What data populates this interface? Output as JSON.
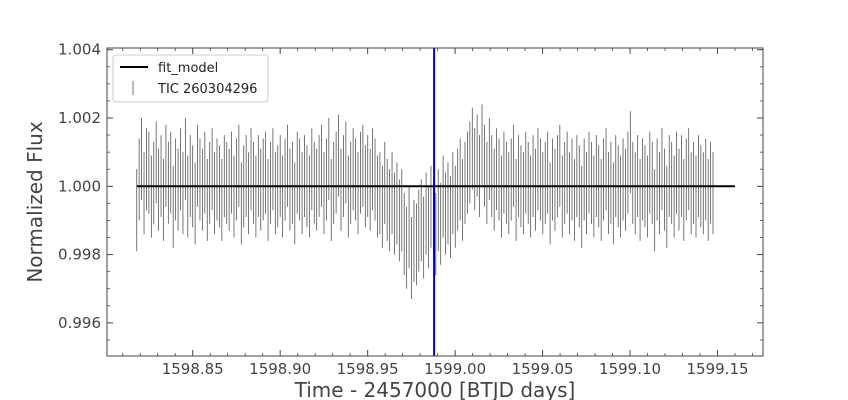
{
  "chart_data": {
    "type": "scatter",
    "xlabel": "Time - 2457000 [BTJD days]",
    "ylabel": "Normalized Flux",
    "xlim": [
      1598.801,
      1599.176
    ],
    "ylim": [
      0.99503,
      1.00405
    ],
    "xticks": [
      1598.85,
      1598.9,
      1598.95,
      1599.0,
      1599.05,
      1599.1,
      1599.15
    ],
    "xtick_labels": [
      "1598.85",
      "1598.90",
      "1598.95",
      "1599.00",
      "1599.05",
      "1599.10",
      "1599.15"
    ],
    "yticks": [
      0.996,
      0.998,
      1.0,
      1.002,
      1.004
    ],
    "ytick_labels": [
      "0.996",
      "0.998",
      "1.000",
      "1.002",
      "1.004"
    ],
    "grid": false,
    "legend_position": "top-left",
    "series": [
      {
        "name": "fit_model",
        "kind": "line",
        "color": "#000000",
        "x": [
          1598.818,
          1599.16
        ],
        "y": [
          1.0,
          1.0
        ]
      },
      {
        "name": "TIC 260304296",
        "kind": "errorbar",
        "color": "#555555",
        "x_start": 1598.818,
        "x_step": 0.00139,
        "error": 0.0012,
        "y": [
          0.9993,
          1.0002,
          1.0008,
          0.9998,
          1.0005,
          1.0004,
          0.9997,
          1.0001,
          1.0007,
          0.9999,
          1.0003,
          0.9996,
          1.0006,
          1.0001,
          1.0004,
          0.9994,
          1.0002,
          0.9999,
          1.0005,
          0.9998,
          1.0008,
          0.9997,
          1.0003,
          1.0,
          0.9995,
          1.0006,
          1.0002,
          0.9999,
          1.0004,
          0.9996,
          1.0001,
          1.0005,
          0.9998,
          1.0002,
          1.0,
          0.9996,
          1.0003,
          1.0001,
          0.9999,
          1.0004,
          0.9997,
          1.0002,
          1.0006,
          0.9995,
          1.0,
          1.0003,
          0.9998,
          1.0005,
          1.0001,
          0.9997,
          1.0003,
          0.9999,
          1.0002,
          1.0004,
          0.9996,
          1.0001,
          1.0005,
          0.9998,
          1.0,
          1.0003,
          0.9997,
          1.0002,
          1.0006,
          0.9999,
          1.0001,
          0.9995,
          1.0004,
          1.0002,
          0.9998,
          1.0003,
          1.0,
          0.9997,
          1.0005,
          1.0001,
          0.9999,
          1.0003,
          1.0006,
          0.9998,
          1.0002,
          1.0008,
          0.9996,
          1.0001,
          1.0004,
          1.0009,
          0.9999,
          1.0003,
          1.0007,
          0.9997,
          1.0001,
          1.0005,
          1.0002,
          0.9998,
          1.0004,
          1.0006,
          1.0,
          1.0003,
          0.9999,
          1.0005,
          1.0002,
          0.9997,
          0.9998,
          0.9994,
          1.0001,
          0.9996,
          0.9993,
          0.9998,
          0.9992,
          0.9995,
          0.999,
          0.9993,
          0.9986,
          0.9982,
          0.9988,
          0.9979,
          0.9984,
          0.9983,
          0.9987,
          0.999,
          0.9985,
          0.9992,
          0.9988,
          0.9994,
          0.999,
          0.9986,
          0.9993,
          0.9989,
          0.9997,
          0.9992,
          0.9995,
          0.9991,
          0.9998,
          0.9994,
          0.9999,
          1.0002,
          0.9996,
          1.0001,
          1.0004,
          1.0007,
          1.0011,
          1.0005,
          1.0009,
          1.0003,
          1.0012,
          1.0006,
          1.0001,
          1.0008,
          1.0003,
          0.9999,
          1.0005,
          1.0002,
          0.9997,
          1.0004,
          1.0001,
          0.9998,
          1.0002,
          1.0006,
          0.9996,
          1.0003,
          1.0,
          0.9998,
          1.0004,
          1.0001,
          0.9997,
          1.0003,
          0.9999,
          1.0005,
          1.0002,
          0.9998,
          1.0001,
          1.0004,
          0.9995,
          1.0002,
          0.9999,
          1.0003,
          1.0006,
          0.9997,
          1.0001,
          1.0004,
          0.9998,
          1.0002,
          0.9996,
          1.0003,
          1.0,
          0.9994,
          1.0002,
          0.9998,
          1.0004,
          1.0001,
          0.9997,
          1.0003,
          1.0,
          0.9996,
          1.0002,
          1.0005,
          0.9998,
          1.0001,
          0.9995,
          1.0003,
          1.0,
          0.9997,
          1.0002,
          0.9999,
          1.0004,
          1.001,
          1.0001,
          0.9998,
          1.0003,
          0.9996,
          1.0002,
          1.0,
          0.9997,
          1.0004,
          1.0001,
          0.9993,
          1.0002,
          0.9998,
          1.0005,
          0.9999,
          0.9994,
          1.0003,
          1.0001,
          0.9997,
          1.0004,
          0.9999,
          1.0003,
          0.9996,
          1.0002,
          1.0005,
          0.9998,
          1.0001,
          0.9997,
          1.0003,
          1.0,
          0.9998,
          1.0002,
          0.9996,
          1.0001,
          0.9998
        ]
      }
    ],
    "annotations": [
      {
        "type": "vline",
        "x": 1598.988,
        "color": "#0000cc"
      }
    ]
  }
}
